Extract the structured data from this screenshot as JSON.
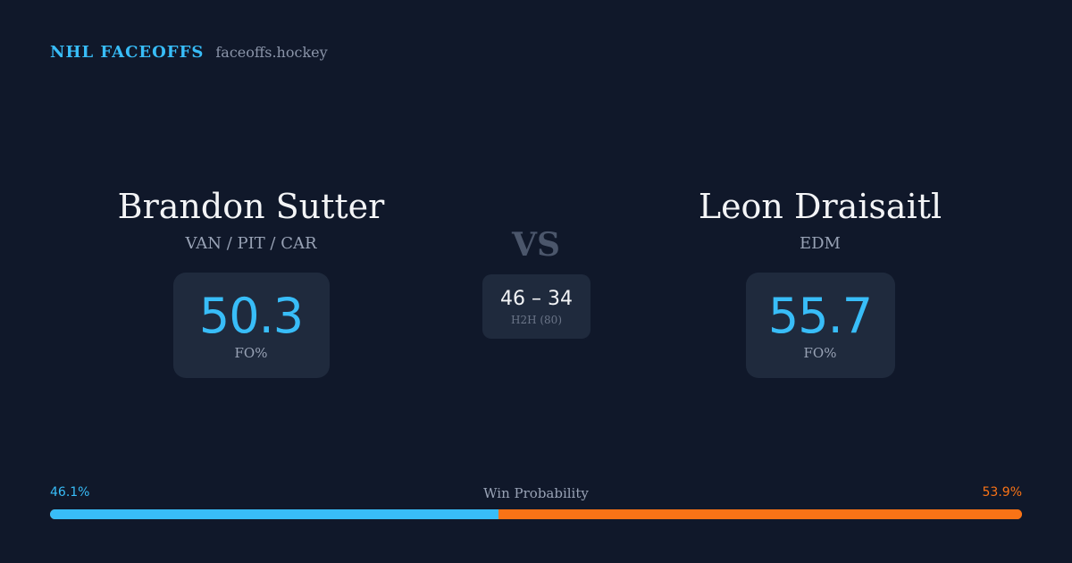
{
  "brand": {
    "name": "NHL FACEOFFS",
    "site": "faceoffs.hockey"
  },
  "players": {
    "left": {
      "name": "Brandon Sutter",
      "teams": "VAN / PIT / CAR",
      "fo_value": "50.3",
      "fo_label": "FO%"
    },
    "right": {
      "name": "Leon Draisaitl",
      "teams": "EDM",
      "fo_value": "55.7",
      "fo_label": "FO%"
    }
  },
  "vs_label": "VS",
  "h2h": {
    "score": "46 – 34",
    "label": "H2H (80)"
  },
  "win_probability": {
    "title": "Win Probability",
    "left_text": "46.1%",
    "right_text": "53.9%",
    "left_value": 46.1,
    "right_value": 53.9
  },
  "colors": {
    "accent_blue": "#38bdf8",
    "accent_orange": "#f97316",
    "background": "#10182a",
    "card": "#1f2a3d"
  }
}
